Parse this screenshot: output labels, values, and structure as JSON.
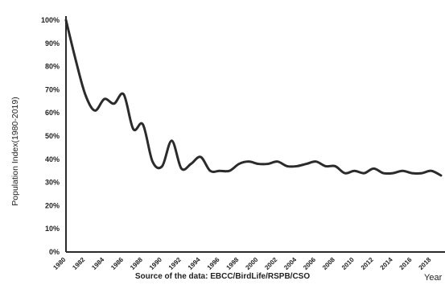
{
  "chart_data": {
    "type": "line",
    "title": "",
    "ylabel": "Population Index(1980-2019)",
    "xlabel": "Year",
    "ylim": [
      0,
      100
    ],
    "xlim": [
      1980,
      2019
    ],
    "y_ticks": [
      "0%",
      "10%",
      "20%",
      "30%",
      "40%",
      "50%",
      "60%",
      "70%",
      "80%",
      "90%",
      "100%"
    ],
    "x_ticks": [
      "1980",
      "1982",
      "1984",
      "1986",
      "1988",
      "1990",
      "1992",
      "1994",
      "1996",
      "1998",
      "2000",
      "2002",
      "2004",
      "2006",
      "2008",
      "2010",
      "2012",
      "2014",
      "2016",
      "2018"
    ],
    "grid": false,
    "series": [
      {
        "color": "#2b2b2b",
        "x": [
          1980,
          1981,
          1982,
          1983,
          1984,
          1985,
          1986,
          1987,
          1988,
          1989,
          1990,
          1991,
          1992,
          1993,
          1994,
          1995,
          1996,
          1997,
          1998,
          1999,
          2000,
          2001,
          2002,
          2003,
          2004,
          2005,
          2006,
          2007,
          2008,
          2009,
          2010,
          2011,
          2012,
          2013,
          2014,
          2015,
          2016,
          2017,
          2018,
          2019
        ],
        "values": [
          100,
          83,
          68,
          61,
          66,
          64,
          68,
          53,
          55,
          39,
          37,
          48,
          36,
          38,
          41,
          35,
          35,
          35,
          38,
          39,
          38,
          38,
          39,
          37,
          37,
          38,
          39,
          37,
          37,
          34,
          35,
          34,
          36,
          34,
          34,
          35,
          34,
          34,
          35,
          33
        ]
      }
    ]
  },
  "source": "Source of the data: EBCC/BirdLife/RSPB/CSO"
}
